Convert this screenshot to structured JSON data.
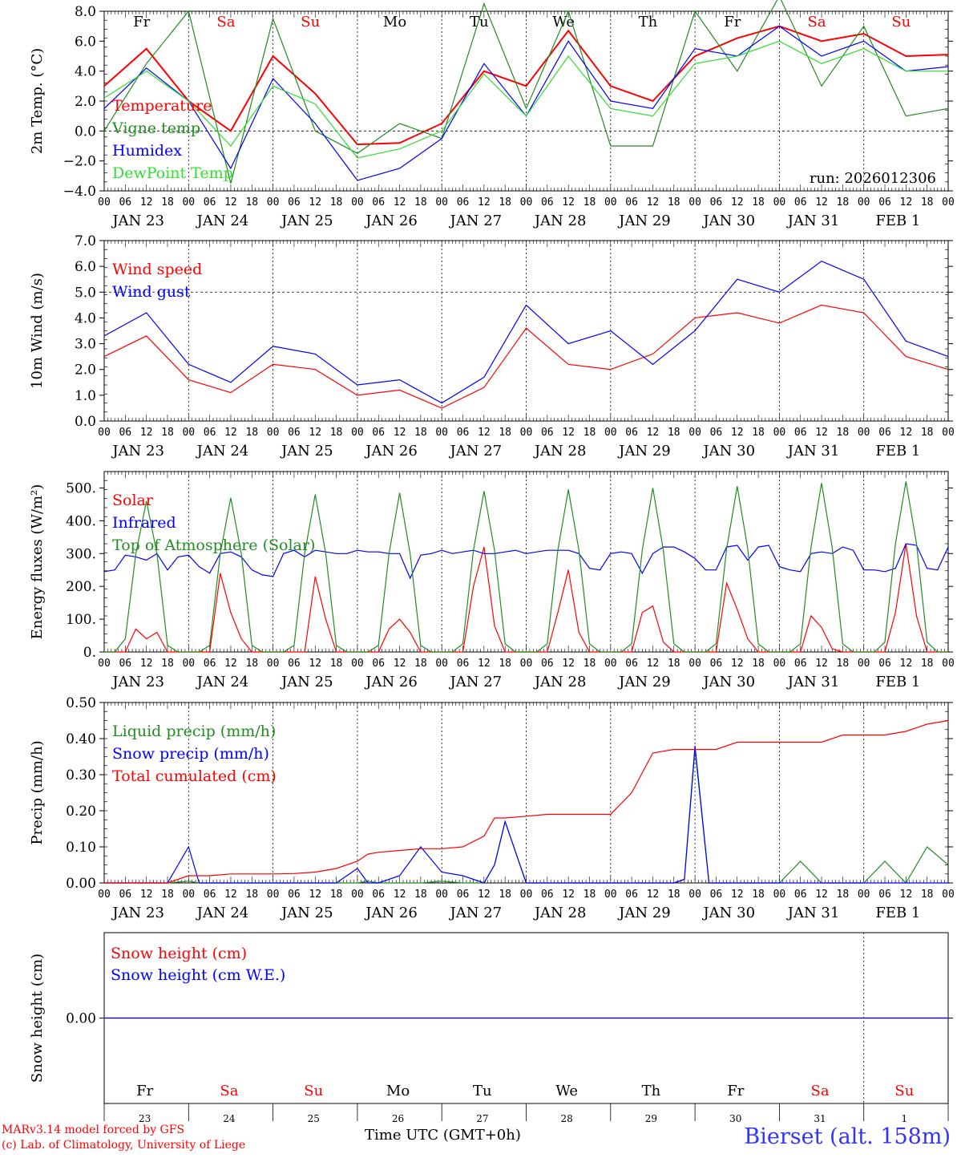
{
  "chart_data": [
    {
      "type": "line",
      "ylabel": "2m Temp. (°C)",
      "ylim": [
        -4,
        8
      ],
      "yticks": [
        "8.0",
        "6.0",
        "4.0",
        "2.0",
        "0.0",
        "−2.0",
        "−4.0"
      ],
      "ytick_values": [
        8,
        6,
        4,
        2,
        0,
        -2,
        -4
      ],
      "zero_line": true,
      "weekday_labels": [
        {
          "text": "Fr",
          "color": "#000000"
        },
        {
          "text": "Sa",
          "color": "#ff0000"
        },
        {
          "text": "Su",
          "color": "#ff0000"
        },
        {
          "text": "Mo",
          "color": "#000000"
        },
        {
          "text": "Tu",
          "color": "#000000"
        },
        {
          "text": "We",
          "color": "#000000"
        },
        {
          "text": "Th",
          "color": "#000000"
        },
        {
          "text": "Fr",
          "color": "#000000"
        },
        {
          "text": "Sa",
          "color": "#ff0000"
        },
        {
          "text": "Su",
          "color": "#ff0000"
        }
      ],
      "annotation": "run: 2026012306",
      "hours": [
        0,
        12,
        24,
        36,
        48,
        60,
        72,
        84,
        96,
        108,
        120,
        132,
        144,
        156,
        168,
        180,
        192,
        204,
        216,
        228,
        240
      ],
      "series": [
        {
          "name": "Temperature",
          "color": "#ff0000",
          "values": [
            3.0,
            5.5,
            2.0,
            0.0,
            5.0,
            2.5,
            -0.9,
            -0.8,
            0.5,
            4.0,
            3.0,
            6.7,
            3.0,
            2.0,
            5.0,
            6.2,
            7.0,
            6.0,
            6.5,
            5.0,
            5.1
          ]
        },
        {
          "name": "Vigne temp",
          "color": "#228b22",
          "values": [
            0.0,
            4.5,
            8.0,
            -3.5,
            7.5,
            0.0,
            -1.5,
            0.5,
            -0.5,
            8.5,
            1.5,
            8.0,
            -1.0,
            -1.0,
            8.0,
            4.0,
            9.0,
            3.0,
            7.0,
            1.0,
            1.5
          ]
        },
        {
          "name": "Humidex",
          "color": "#0000ff",
          "values": [
            1.5,
            4.2,
            2.0,
            -2.5,
            3.5,
            0.5,
            -3.3,
            -2.5,
            -0.5,
            4.5,
            1.0,
            6.0,
            2.0,
            1.5,
            5.5,
            5.0,
            7.0,
            5.0,
            6.0,
            4.0,
            4.3
          ]
        },
        {
          "name": "DewPoint Temp",
          "color": "#32dc32",
          "values": [
            2.2,
            4.0,
            2.0,
            -1.0,
            3.0,
            1.8,
            -1.8,
            -1.2,
            0.0,
            3.8,
            1.0,
            5.0,
            1.5,
            1.0,
            4.5,
            5.0,
            6.0,
            4.5,
            5.5,
            4.0,
            4.0
          ]
        }
      ]
    },
    {
      "type": "line",
      "ylabel": "10m Wind (m/s)",
      "ylim": [
        0,
        7
      ],
      "yticks": [
        "7.0",
        "6.0",
        "5.0",
        "4.0",
        "3.0",
        "2.0",
        "1.0",
        "0.0"
      ],
      "ytick_values": [
        7,
        6,
        5,
        4,
        3,
        2,
        1,
        0
      ],
      "dashed_level": 5,
      "hours": [
        0,
        12,
        24,
        36,
        48,
        60,
        72,
        84,
        96,
        108,
        120,
        132,
        144,
        156,
        168,
        180,
        192,
        204,
        216,
        228,
        240
      ],
      "series": [
        {
          "name": "Wind speed",
          "color": "#ff0000",
          "values": [
            2.5,
            3.3,
            1.6,
            1.1,
            2.2,
            2.0,
            1.0,
            1.2,
            0.5,
            1.3,
            3.6,
            2.2,
            2.0,
            2.6,
            4.0,
            4.2,
            3.8,
            4.5,
            4.2,
            2.5,
            2.0
          ]
        },
        {
          "name": "Wind gust",
          "color": "#0000ff",
          "values": [
            3.3,
            4.2,
            2.2,
            1.5,
            2.9,
            2.6,
            1.4,
            1.6,
            0.7,
            1.7,
            4.5,
            3.0,
            3.5,
            2.2,
            3.5,
            5.5,
            5.0,
            6.2,
            5.5,
            3.1,
            2.5
          ]
        }
      ]
    },
    {
      "type": "line",
      "ylabel": "Energy fluxes (W/m²)",
      "ylim": [
        0,
        550
      ],
      "yticks": [
        "500.",
        "400.",
        "300.",
        "200.",
        "100.",
        "0."
      ],
      "ytick_values": [
        500,
        400,
        300,
        200,
        100,
        0
      ],
      "hours": [
        0,
        3,
        6,
        9,
        12,
        15,
        18,
        21,
        24,
        27,
        30,
        33,
        36,
        39,
        42,
        45,
        48,
        51,
        54,
        57,
        60,
        63,
        66,
        69,
        72,
        75,
        78,
        81,
        84,
        87,
        90,
        93,
        96,
        99,
        102,
        105,
        108,
        111,
        114,
        117,
        120,
        123,
        126,
        129,
        132,
        135,
        138,
        141,
        144,
        147,
        150,
        153,
        156,
        159,
        162,
        165,
        168,
        171,
        174,
        177,
        180,
        183,
        186,
        189,
        192,
        195,
        198,
        201,
        204,
        207,
        210,
        213,
        216,
        219,
        222,
        225,
        228,
        231,
        234,
        237,
        240
      ],
      "series": [
        {
          "name": "Solar",
          "color": "#ff0000",
          "values": [
            0,
            0,
            0,
            70,
            40,
            60,
            0,
            0,
            0,
            0,
            0,
            240,
            120,
            40,
            0,
            0,
            0,
            0,
            0,
            0,
            230,
            100,
            0,
            0,
            0,
            0,
            0,
            70,
            100,
            60,
            0,
            0,
            0,
            0,
            0,
            200,
            320,
            80,
            0,
            0,
            0,
            0,
            0,
            120,
            250,
            60,
            0,
            0,
            0,
            0,
            0,
            120,
            140,
            30,
            0,
            0,
            0,
            0,
            0,
            210,
            130,
            40,
            0,
            0,
            0,
            0,
            0,
            110,
            75,
            10,
            0,
            0,
            0,
            0,
            0,
            120,
            330,
            110,
            0,
            0,
            0
          ]
        },
        {
          "name": "Infrared",
          "color": "#0000ff",
          "values": [
            245,
            250,
            295,
            290,
            280,
            300,
            250,
            290,
            295,
            260,
            240,
            300,
            305,
            290,
            250,
            235,
            230,
            300,
            310,
            290,
            310,
            305,
            300,
            300,
            310,
            305,
            305,
            300,
            300,
            225,
            295,
            300,
            310,
            300,
            305,
            310,
            300,
            300,
            305,
            310,
            300,
            305,
            310,
            310,
            310,
            300,
            255,
            250,
            300,
            305,
            300,
            240,
            300,
            320,
            320,
            305,
            285,
            250,
            250,
            320,
            325,
            280,
            320,
            325,
            260,
            250,
            245,
            300,
            305,
            300,
            320,
            310,
            250,
            250,
            245,
            255,
            330,
            325,
            255,
            250,
            320
          ]
        },
        {
          "name": "Top of Atmosphere (Solar)",
          "color": "#228b22",
          "values": [
            0,
            0,
            40,
            300,
            460,
            300,
            20,
            0,
            0,
            0,
            20,
            300,
            470,
            300,
            20,
            0,
            0,
            0,
            20,
            300,
            480,
            300,
            20,
            0,
            0,
            0,
            20,
            300,
            485,
            300,
            20,
            0,
            0,
            0,
            25,
            310,
            490,
            310,
            25,
            0,
            0,
            0,
            25,
            310,
            495,
            310,
            25,
            0,
            0,
            0,
            25,
            310,
            500,
            310,
            25,
            0,
            0,
            0,
            25,
            315,
            505,
            315,
            25,
            0,
            0,
            0,
            25,
            320,
            515,
            320,
            25,
            0,
            0,
            0,
            30,
            330,
            520,
            330,
            30,
            0,
            0
          ]
        }
      ]
    },
    {
      "type": "line",
      "ylabel": "Precip (mm/h)",
      "ylim": [
        0,
        0.5
      ],
      "yticks": [
        "0.50",
        "0.40",
        "0.30",
        "0.20",
        "0.10",
        "0.00"
      ],
      "ytick_values": [
        0.5,
        0.4,
        0.3,
        0.2,
        0.1,
        0
      ],
      "hours": [
        0,
        6,
        12,
        18,
        24,
        27,
        30,
        36,
        42,
        48,
        54,
        60,
        66,
        72,
        75,
        78,
        84,
        90,
        96,
        102,
        108,
        111,
        114,
        120,
        126,
        132,
        138,
        144,
        150,
        156,
        162,
        165,
        168,
        172,
        174,
        180,
        186,
        192,
        198,
        204,
        210,
        216,
        222,
        228,
        234,
        240
      ],
      "series": [
        {
          "name": "Liquid precip (mm/h)",
          "color": "#228b22",
          "values": [
            0,
            0,
            0,
            0,
            0.005,
            0,
            0,
            0,
            0,
            0,
            0,
            0,
            0,
            0,
            0.005,
            0,
            0,
            0,
            0.005,
            0,
            0,
            0.05,
            0.17,
            0,
            0,
            0,
            0,
            0,
            0,
            0,
            0,
            0.01,
            0.37,
            0,
            0,
            0,
            0,
            0,
            0.06,
            0,
            0,
            0,
            0.06,
            0,
            0.1,
            0.05
          ]
        },
        {
          "name": "Snow precip (mm/h)",
          "color": "#0000ff",
          "values": [
            0,
            0,
            0,
            0,
            0.1,
            0,
            0,
            0,
            0,
            0,
            0,
            0,
            0,
            0.04,
            0,
            0,
            0.02,
            0.1,
            0.03,
            0.02,
            0,
            0.05,
            0.17,
            0,
            0,
            0,
            0,
            0,
            0,
            0,
            0,
            0.01,
            0.38,
            0,
            0,
            0,
            0,
            0,
            0,
            0,
            0,
            0,
            0,
            0,
            0,
            0
          ]
        }
      ],
      "cumulative": {
        "name": "Total cumulated (cm)",
        "color": "#ff0000",
        "values": [
          0,
          0,
          0,
          0,
          0.02,
          0.02,
          0.02,
          0.025,
          0.025,
          0.025,
          0.026,
          0.03,
          0.04,
          0.06,
          0.08,
          0.085,
          0.09,
          0.095,
          0.095,
          0.1,
          0.13,
          0.18,
          0.18,
          0.185,
          0.19,
          0.19,
          0.19,
          0.19,
          0.25,
          0.36,
          0.37,
          0.37,
          0.37,
          0.37,
          0.37,
          0.39,
          0.39,
          0.39,
          0.39,
          0.39,
          0.41,
          0.41,
          0.41,
          0.42,
          0.44,
          0.45
        ]
      }
    },
    {
      "type": "line",
      "ylabel": "Snow height (cm)",
      "yticks": [
        "0.00"
      ],
      "ytick_values": [
        0
      ],
      "ylim": [
        -1,
        1
      ],
      "series": [
        {
          "name": "Snow height (cm)",
          "color": "#ff0000",
          "values": [
            0,
            0
          ]
        },
        {
          "name": "Snow height (cm W.E.)",
          "color": "#0000ff",
          "values": [
            0,
            0
          ]
        }
      ],
      "hours": [
        0,
        240
      ]
    }
  ],
  "x_axis": {
    "hour_ticks": [
      "00",
      "06",
      "12",
      "18"
    ],
    "final_tick": "00",
    "date_labels": [
      "JAN 23",
      "JAN 24",
      "JAN 25",
      "JAN 26",
      "JAN 27",
      "JAN 28",
      "JAN 29",
      "JAN 30",
      "JAN 31",
      "FEB  1"
    ],
    "bottom_day_numbers": [
      "23",
      "24",
      "25",
      "26",
      "27",
      "28",
      "29",
      "30",
      "31",
      "1"
    ],
    "bottom_weekdays": [
      {
        "text": "Fr",
        "color": "#000000"
      },
      {
        "text": "Sa",
        "color": "#ff0000"
      },
      {
        "text": "Su",
        "color": "#ff0000"
      },
      {
        "text": "Mo",
        "color": "#000000"
      },
      {
        "text": "Tu",
        "color": "#000000"
      },
      {
        "text": "We",
        "color": "#000000"
      },
      {
        "text": "Th",
        "color": "#000000"
      },
      {
        "text": "Fr",
        "color": "#000000"
      },
      {
        "text": "Sa",
        "color": "#ff0000"
      },
      {
        "text": "Su",
        "color": "#ff0000"
      }
    ],
    "xlabel": "Time UTC (GMT+0h)"
  },
  "footer": {
    "credit_line1": "MARv3.14 model forced by GFS",
    "credit_line2": "(c) Lab. of Climatology, University of Liege",
    "station": "Bierset (alt. 158m)",
    "credit_color": "#ff0000",
    "station_color": "#3232ff"
  }
}
